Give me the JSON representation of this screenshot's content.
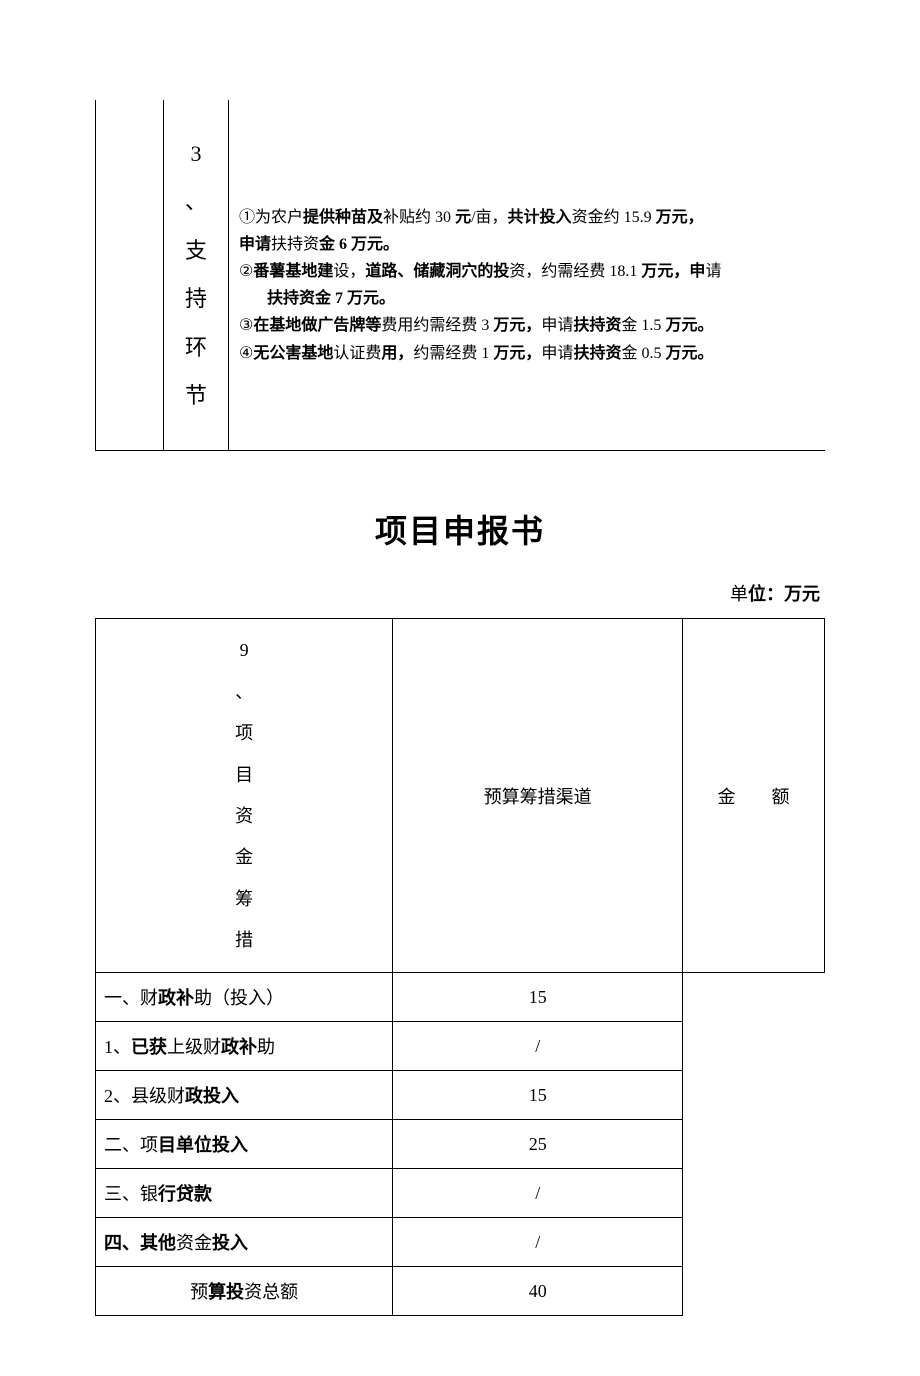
{
  "table1": {
    "col2_text": "3、支持环节",
    "lines": [
      {
        "prefix": "①",
        "parts": [
          "为农户",
          "提供种苗及",
          "补贴约 30 ",
          "元",
          "/亩，",
          "共计",
          "投入",
          "资金约 15.9 ",
          "万元，"
        ],
        "bold_indices": [
          1,
          3,
          5,
          6,
          8
        ]
      },
      {
        "prefix": "",
        "parts": [
          "申请",
          "扶持资",
          "金 6 万元。"
        ],
        "bold_indices": [
          0,
          2
        ],
        "class": ""
      },
      {
        "prefix": "②",
        "parts": [
          "番薯基地建",
          "设，",
          "道路、",
          "储藏洞穴的投",
          "资，约需经费 18.1 ",
          "万元，申",
          "请"
        ],
        "bold_indices": [
          0,
          2,
          3,
          5
        ]
      },
      {
        "prefix": "",
        "parts": [
          "扶持资",
          "金 7 万元。"
        ],
        "bold_indices": [
          0,
          1
        ],
        "class": "indent"
      },
      {
        "prefix": "③",
        "parts": [
          "在基地做广告牌等",
          "费用约需经费 3 ",
          "万元，",
          "申请",
          "扶持资",
          "金 1.5 ",
          "万元。"
        ],
        "bold_indices": [
          0,
          2,
          4,
          6
        ]
      },
      {
        "prefix": "④",
        "parts": [
          "无公害基地",
          "认证费",
          "用，",
          "约需经费 1 ",
          "万元，",
          "申请",
          "扶持资",
          "金 0.5 ",
          "万元。"
        ],
        "bold_indices": [
          0,
          2,
          4,
          6,
          8
        ]
      }
    ]
  },
  "title": "项目申报书",
  "unit_label": "单位：万元",
  "table2": {
    "rowhead": "9、项目资金筹措",
    "header_channel": "预算筹措渠道",
    "header_amount": "金  额",
    "rows": [
      {
        "label": "一、财政补助（投入）",
        "amount": "15",
        "bold": false
      },
      {
        "label": "1、已获上级财政补助",
        "amount": "/",
        "bold": false
      },
      {
        "label": "2、县级财政投入",
        "amount": "15",
        "bold": false
      },
      {
        "label": "二、项目单位投入",
        "amount": "25",
        "bold": false
      },
      {
        "label": "三、银行贷款",
        "amount": "/",
        "bold": false
      },
      {
        "label": "四、其他资金投入",
        "amount": "/",
        "bold": false
      }
    ],
    "total_label": "预算投资总额",
    "total_amount": "40"
  },
  "mixed_bold": {
    "t2r0": [
      [
        "一、财",
        false
      ],
      [
        "政补",
        true
      ],
      [
        "助（投入）",
        false
      ]
    ],
    "t2r1": [
      [
        "1、",
        false
      ],
      [
        "已获",
        true
      ],
      [
        "上级财",
        false
      ],
      [
        "政补",
        true
      ],
      [
        "助",
        false
      ]
    ],
    "t2r2": [
      [
        "2、县级财",
        false
      ],
      [
        "政投入",
        true
      ]
    ],
    "t2r3": [
      [
        "二、项",
        false
      ],
      [
        "目单位投入",
        true
      ]
    ],
    "t2r4": [
      [
        "三、银",
        false
      ],
      [
        "行贷款",
        true
      ]
    ],
    "t2r5": [
      [
        "四、其他",
        true
      ],
      [
        "资金",
        false
      ],
      [
        "投入",
        true
      ]
    ],
    "total": [
      [
        "预",
        false
      ],
      [
        "算投",
        true
      ],
      [
        "资总额",
        false
      ]
    ],
    "title": [
      [
        "项",
        false
      ],
      [
        "目申",
        true
      ],
      [
        "报书",
        false
      ]
    ],
    "unit": [
      [
        "单",
        false
      ],
      [
        "位：万元",
        true
      ]
    ]
  }
}
